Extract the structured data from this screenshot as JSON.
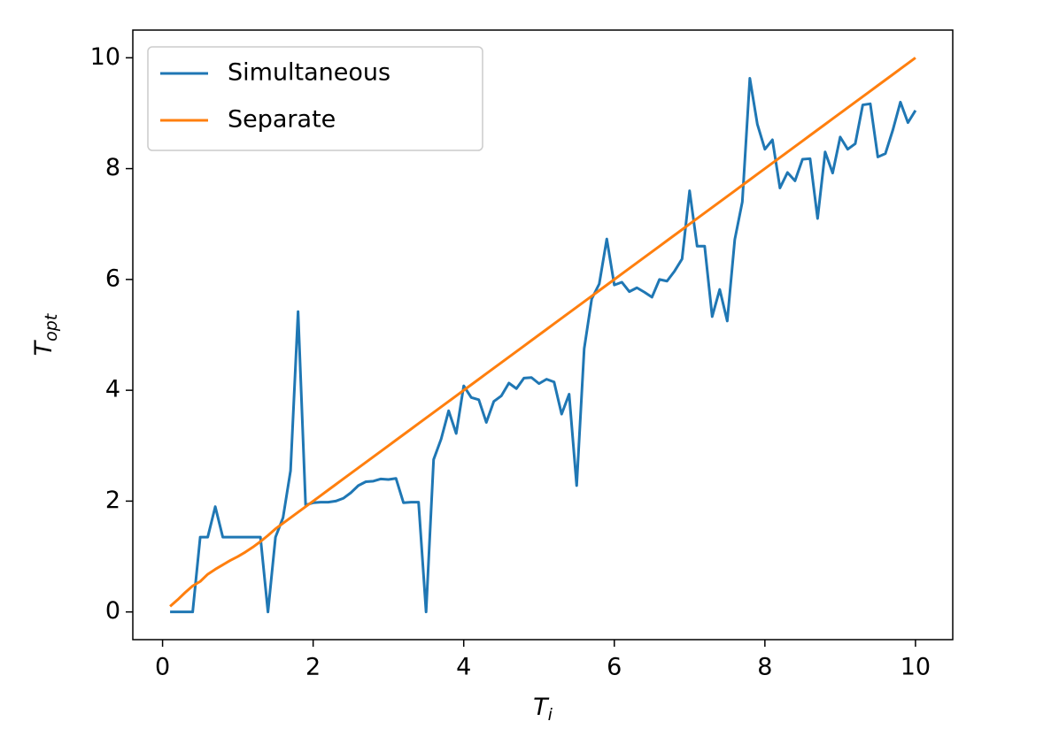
{
  "chart_data": {
    "type": "line",
    "xlabel": {
      "base": "T",
      "sub": "i"
    },
    "ylabel": {
      "base": "T",
      "sub": "opt"
    },
    "x": [
      0.1,
      0.2,
      0.3,
      0.4,
      0.5,
      0.6,
      0.7,
      0.8,
      0.9,
      1.0,
      1.1,
      1.2,
      1.3,
      1.4,
      1.5,
      1.6,
      1.7,
      1.8,
      1.9,
      2.0,
      2.1,
      2.2,
      2.3,
      2.4,
      2.5,
      2.6,
      2.7,
      2.8,
      2.9,
      3.0,
      3.1,
      3.2,
      3.3,
      3.4,
      3.5,
      3.6,
      3.7,
      3.8,
      3.9,
      4.0,
      4.1,
      4.2,
      4.3,
      4.4,
      4.5,
      4.6,
      4.7,
      4.8,
      4.9,
      5.0,
      5.1,
      5.2,
      5.3,
      5.4,
      5.5,
      5.6,
      5.7,
      5.8,
      5.9,
      6.0,
      6.1,
      6.2,
      6.3,
      6.4,
      6.5,
      6.6,
      6.7,
      6.8,
      6.9,
      7.0,
      7.1,
      7.2,
      7.3,
      7.4,
      7.5,
      7.6,
      7.7,
      7.8,
      7.9,
      8.0,
      8.1,
      8.2,
      8.3,
      8.4,
      8.5,
      8.6,
      8.7,
      8.8,
      8.9,
      9.0,
      9.1,
      9.2,
      9.3,
      9.4,
      9.5,
      9.6,
      9.7,
      9.8,
      9.9,
      10.0
    ],
    "series": [
      {
        "name": "Simultaneous",
        "color": "#1f77b4",
        "values": [
          0,
          0,
          0,
          0,
          1.35,
          1.35,
          1.9,
          1.35,
          1.35,
          1.35,
          1.35,
          1.35,
          1.35,
          0,
          1.35,
          1.7,
          2.55,
          5.42,
          1.93,
          1.97,
          1.98,
          1.98,
          2.0,
          2.05,
          2.15,
          2.28,
          2.35,
          2.36,
          2.4,
          2.39,
          2.41,
          1.97,
          1.98,
          1.98,
          0,
          2.75,
          3.12,
          3.63,
          3.22,
          4.08,
          3.87,
          3.83,
          3.42,
          3.8,
          3.9,
          4.13,
          4.03,
          4.22,
          4.23,
          4.12,
          4.2,
          4.15,
          3.57,
          3.93,
          2.28,
          4.75,
          5.65,
          5.92,
          6.73,
          5.9,
          5.95,
          5.78,
          5.85,
          5.77,
          5.68,
          6.0,
          5.97,
          6.15,
          6.37,
          7.6,
          6.6,
          6.6,
          5.33,
          5.82,
          5.25,
          6.72,
          7.4,
          9.63,
          8.8,
          8.35,
          8.52,
          7.65,
          7.93,
          7.78,
          8.17,
          8.18,
          7.1,
          8.3,
          7.92,
          8.57,
          8.35,
          8.45,
          9.15,
          9.17,
          8.21,
          8.27,
          8.7,
          9.2,
          8.83,
          9.05
        ]
      },
      {
        "name": "Separate",
        "color": "#ff7f0e",
        "values": [
          0.1,
          0.22,
          0.35,
          0.47,
          0.55,
          0.68,
          0.77,
          0.85,
          0.93,
          1.0,
          1.08,
          1.17,
          1.27,
          1.38,
          1.5,
          1.6,
          1.7,
          1.8,
          1.9,
          2.0,
          2.1,
          2.2,
          2.3,
          2.4,
          2.5,
          2.6,
          2.7,
          2.8,
          2.9,
          3.0,
          3.1,
          3.2,
          3.3,
          3.4,
          3.5,
          3.6,
          3.7,
          3.8,
          3.9,
          4.0,
          4.1,
          4.2,
          4.3,
          4.4,
          4.5,
          4.6,
          4.7,
          4.8,
          4.9,
          5.0,
          5.1,
          5.2,
          5.3,
          5.4,
          5.5,
          5.6,
          5.7,
          5.8,
          5.9,
          6.0,
          6.1,
          6.2,
          6.3,
          6.4,
          6.5,
          6.6,
          6.7,
          6.8,
          6.9,
          7.0,
          7.1,
          7.2,
          7.3,
          7.4,
          7.5,
          7.6,
          7.7,
          7.8,
          7.9,
          8.0,
          8.1,
          8.2,
          8.3,
          8.4,
          8.5,
          8.6,
          8.7,
          8.8,
          8.9,
          9.0,
          9.1,
          9.2,
          9.3,
          9.4,
          9.5,
          9.6,
          9.7,
          9.8,
          9.9,
          10.0
        ]
      }
    ],
    "xlim": [
      -0.395,
      10.495
    ],
    "xticks": [
      0,
      2,
      4,
      6,
      8,
      10
    ],
    "ylim": [
      -0.5,
      10.5
    ],
    "yticks": [
      0,
      2,
      4,
      6,
      8,
      10
    ],
    "legend": "upper left"
  }
}
